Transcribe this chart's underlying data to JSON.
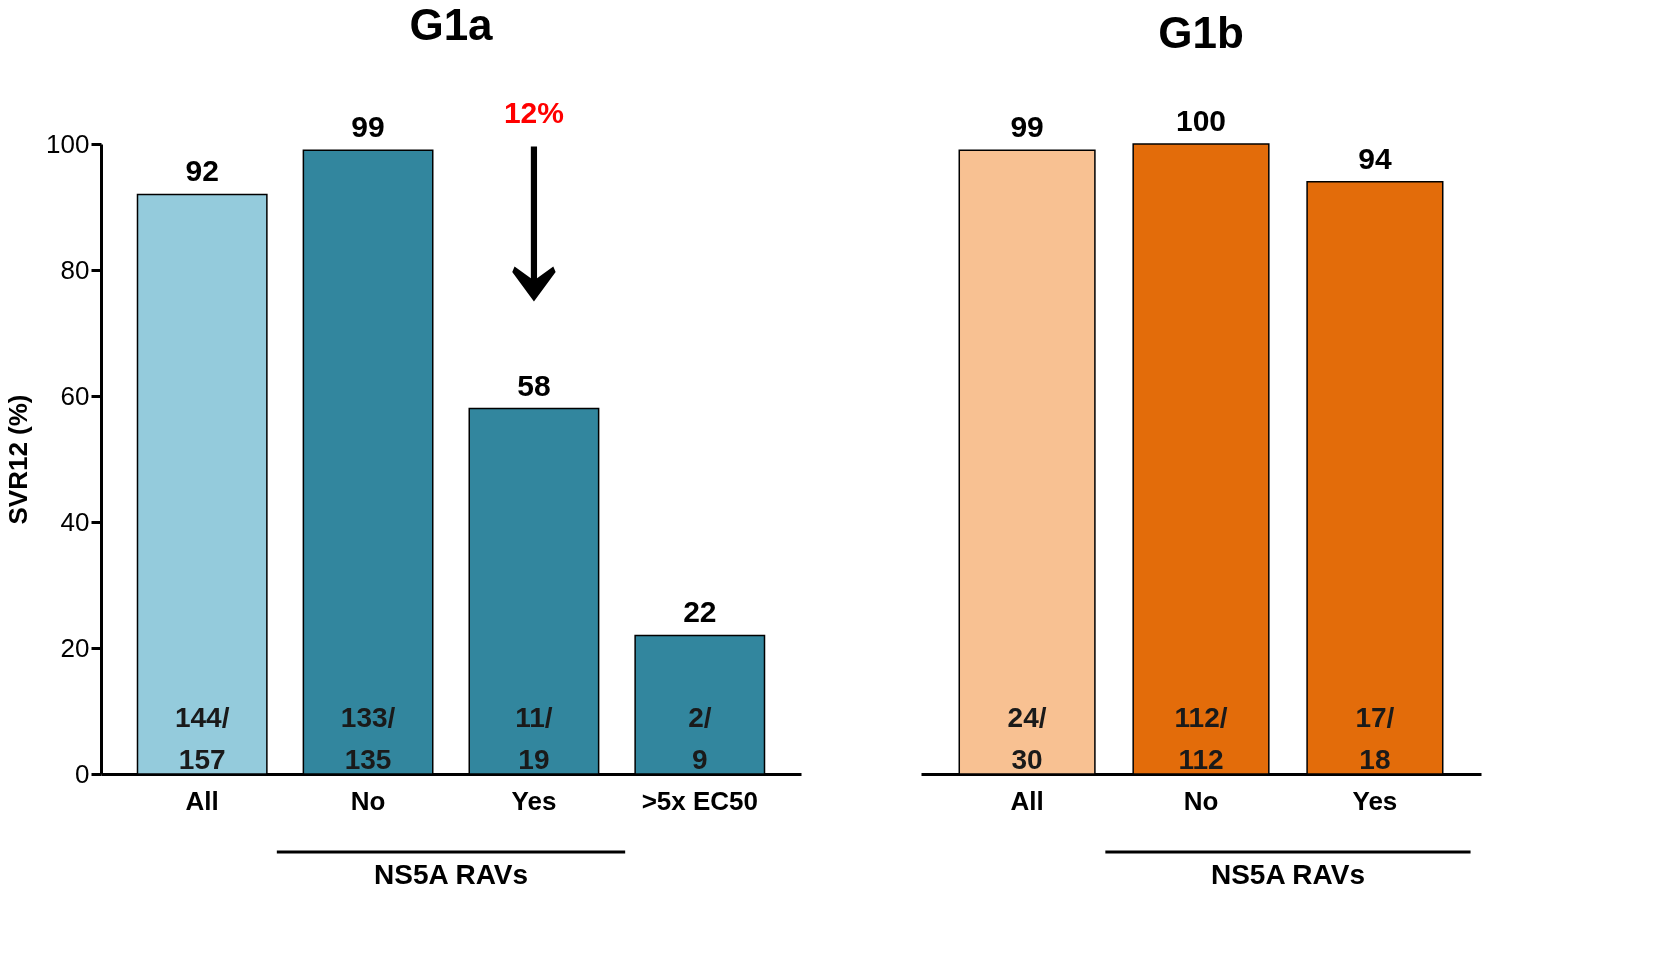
{
  "chart_data": [
    {
      "type": "bar",
      "title": "G1a",
      "ylabel": "SVR12 (%)",
      "categories": [
        "All",
        "No",
        "Yes",
        ">5x EC50"
      ],
      "values": [
        92,
        99,
        58,
        22
      ],
      "colors": [
        "#94cbdc",
        "#32869e",
        "#32869e",
        "#32869e"
      ],
      "ylim": [
        0,
        100
      ],
      "yticks": [
        0,
        20,
        40,
        60,
        80,
        100
      ],
      "data_labels": true,
      "grid": false,
      "legend": false,
      "annotations": [
        "144/157",
        "133/135",
        "11/19",
        "2/9",
        "12%",
        "NS5A RAVs"
      ]
    },
    {
      "type": "bar",
      "title": "G1b",
      "categories": [
        "All",
        "No",
        "Yes"
      ],
      "values": [
        99,
        100,
        94
      ],
      "colors": [
        "#f8c192",
        "#e36c0a",
        "#e36c0a"
      ],
      "ylim": [
        0,
        100
      ],
      "yticks": [
        0,
        20,
        40,
        60,
        80,
        100
      ],
      "tick_labels": "x",
      "data_labels": true,
      "grid": false,
      "legend": false,
      "annotations": [
        "24/30",
        "112/112",
        "17/18",
        "NS5A RAVs"
      ]
    }
  ]
}
